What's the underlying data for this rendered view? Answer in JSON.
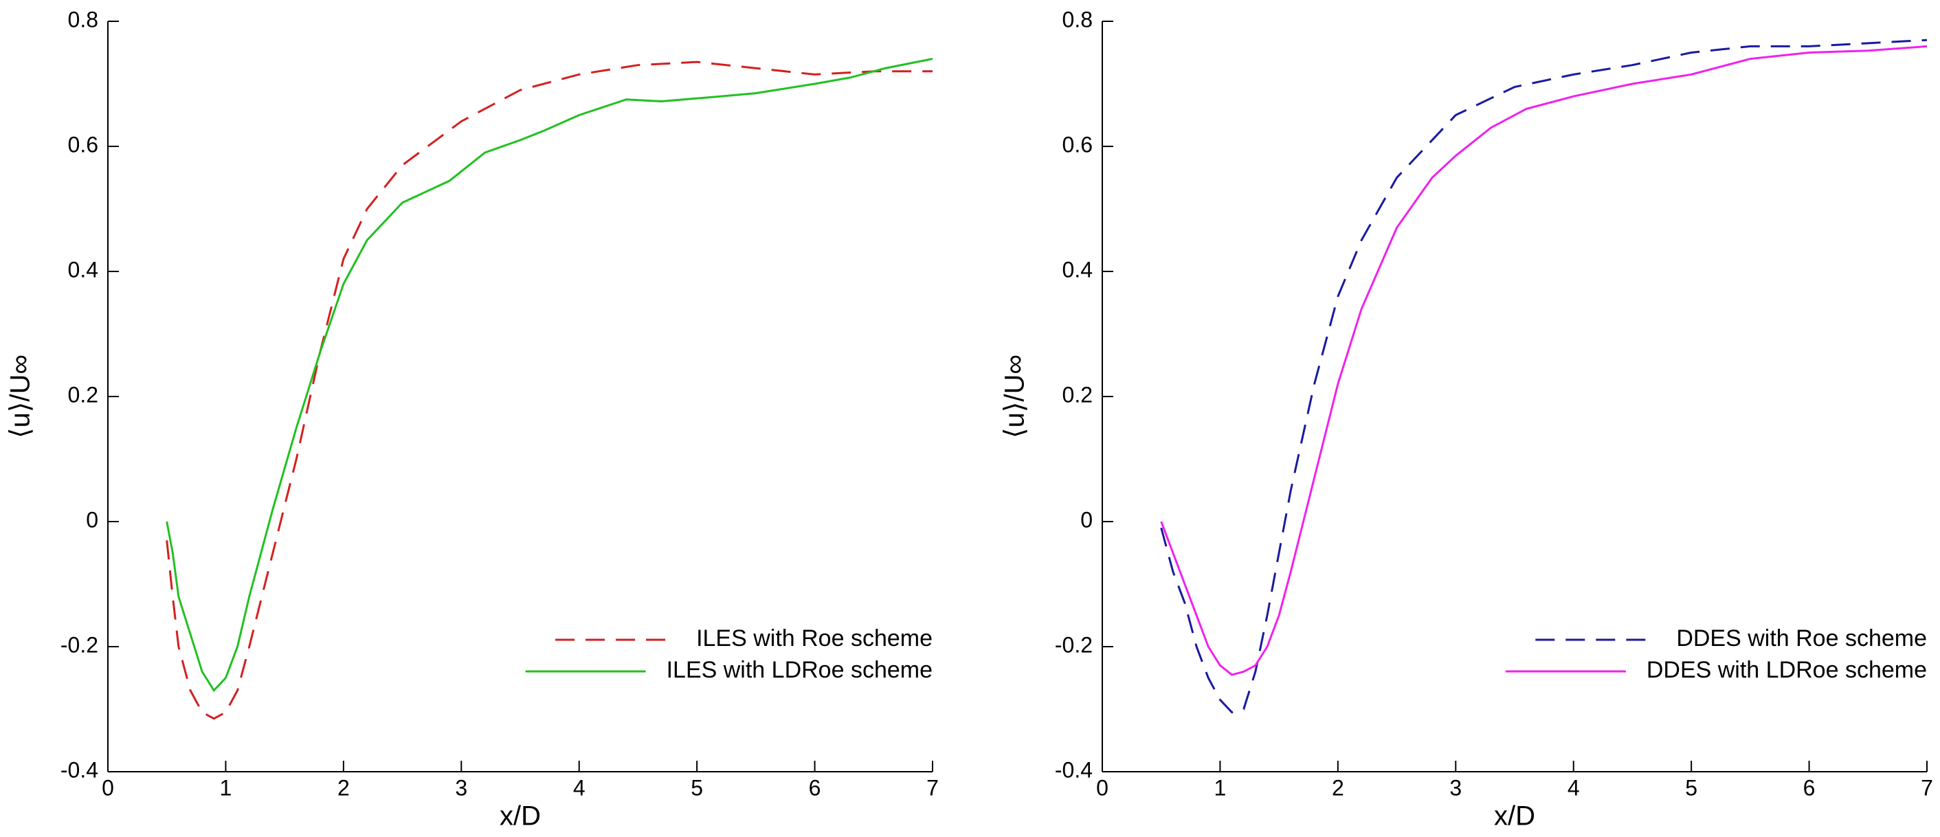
{
  "chart_data": [
    {
      "type": "line",
      "xlabel": "x/D",
      "ylabel": "⟨u⟩/U∞",
      "xlim": [
        0,
        7
      ],
      "xticks": [
        0,
        1,
        2,
        3,
        4,
        5,
        6,
        7
      ],
      "ylim": [
        -0.4,
        0.8
      ],
      "yticks": [
        -0.4,
        -0.2,
        0,
        0.2,
        0.4,
        0.6,
        0.8
      ],
      "legend": "lower right",
      "series": [
        {
          "name": "ILES with Roe scheme",
          "color": "#d42020",
          "dash": true,
          "x": [
            0.5,
            0.55,
            0.6,
            0.7,
            0.8,
            0.9,
            1.0,
            1.1,
            1.2,
            1.4,
            1.6,
            1.8,
            2.0,
            2.2,
            2.5,
            3.0,
            3.5,
            4.0,
            4.5,
            5.0,
            5.5,
            6.0,
            6.5,
            7.0
          ],
          "values": [
            -0.03,
            -0.12,
            -0.2,
            -0.27,
            -0.305,
            -0.315,
            -0.305,
            -0.27,
            -0.2,
            -0.05,
            0.1,
            0.27,
            0.42,
            0.5,
            0.57,
            0.64,
            0.69,
            0.715,
            0.73,
            0.735,
            0.725,
            0.715,
            0.72,
            0.72
          ]
        },
        {
          "name": "ILES with LDRoe scheme",
          "color": "#22c022",
          "dash": false,
          "x": [
            0.5,
            0.55,
            0.6,
            0.7,
            0.8,
            0.9,
            1.0,
            1.1,
            1.2,
            1.4,
            1.6,
            1.8,
            2.0,
            2.2,
            2.5,
            2.9,
            3.2,
            3.5,
            3.7,
            4.0,
            4.4,
            4.7,
            5.2,
            5.5,
            6.0,
            6.3,
            6.6,
            7.0
          ],
          "values": [
            0,
            -0.05,
            -0.12,
            -0.18,
            -0.24,
            -0.27,
            -0.25,
            -0.2,
            -0.12,
            0.02,
            0.15,
            0.27,
            0.38,
            0.45,
            0.51,
            0.545,
            0.59,
            0.61,
            0.625,
            0.65,
            0.675,
            0.672,
            0.68,
            0.685,
            0.7,
            0.71,
            0.725,
            0.74
          ]
        }
      ]
    },
    {
      "type": "line",
      "xlabel": "x/D",
      "ylabel": "⟨u⟩/U∞",
      "xlim": [
        0,
        7
      ],
      "xticks": [
        0,
        1,
        2,
        3,
        4,
        5,
        6,
        7
      ],
      "ylim": [
        -0.4,
        0.8
      ],
      "yticks": [
        -0.4,
        -0.2,
        0,
        0.2,
        0.4,
        0.6,
        0.8
      ],
      "legend": "lower right",
      "series": [
        {
          "name": "DDES with Roe scheme",
          "color": "#1a1aa0",
          "dash": true,
          "x": [
            0.5,
            0.6,
            0.7,
            0.8,
            0.9,
            1.0,
            1.1,
            1.2,
            1.3,
            1.4,
            1.6,
            1.8,
            2.0,
            2.2,
            2.5,
            3.0,
            3.5,
            4.0,
            4.5,
            5.0,
            5.5,
            6.0,
            6.5,
            7.0
          ],
          "values": [
            -0.01,
            -0.08,
            -0.13,
            -0.2,
            -0.25,
            -0.285,
            -0.305,
            -0.3,
            -0.24,
            -0.15,
            0.05,
            0.22,
            0.36,
            0.45,
            0.55,
            0.65,
            0.695,
            0.715,
            0.73,
            0.75,
            0.76,
            0.76,
            0.765,
            0.77
          ]
        },
        {
          "name": "DDES with LDRoe scheme",
          "color": "#ee22ee",
          "dash": false,
          "x": [
            0.5,
            0.6,
            0.7,
            0.8,
            0.9,
            1.0,
            1.1,
            1.2,
            1.3,
            1.4,
            1.5,
            1.6,
            1.8,
            2.0,
            2.2,
            2.5,
            2.8,
            3.0,
            3.3,
            3.6,
            4.0,
            4.5,
            5.0,
            5.5,
            6.0,
            6.5,
            7.0
          ],
          "values": [
            0,
            -0.05,
            -0.1,
            -0.15,
            -0.2,
            -0.23,
            -0.245,
            -0.24,
            -0.23,
            -0.2,
            -0.15,
            -0.08,
            0.07,
            0.22,
            0.34,
            0.47,
            0.55,
            0.585,
            0.63,
            0.66,
            0.68,
            0.7,
            0.715,
            0.74,
            0.75,
            0.753,
            0.76
          ]
        }
      ]
    }
  ]
}
